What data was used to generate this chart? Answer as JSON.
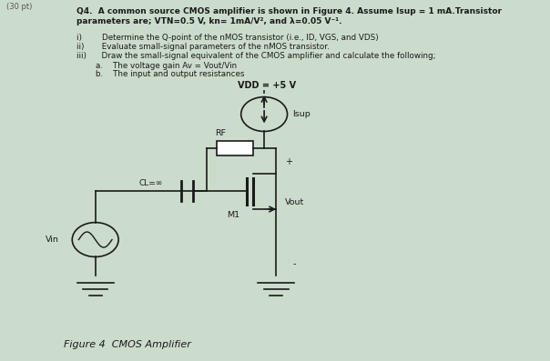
{
  "bg_color": "#ccdccc",
  "text_color": "#1a1a1a",
  "header1": "Q4.  A common source CMOS amplifier is shown in Figure 4. Assume Isup = 1 mA.Transistor",
  "header2": "parameters are; VTN=0.5 V, kn= 1mA/V², and λ=0.05 V⁻¹.",
  "item1": "i)        Determine the Q-point of the nMOS transistor (i.e., ID, VGS, and VDS)",
  "item2": "ii)       Evaluate small-signal parameters of the nMOS transistor.",
  "item3": "iii)      Draw the small-signal equivalent of the CMOS amplifier and calculate the following;",
  "item4": "a.    The voltage gain Av = Vout/Vin",
  "item5": "b.    The input and output resistances",
  "caption": "Figure 4  CMOS Amplifier",
  "vdd_label": "VDD = +5 V",
  "isup_label": "Isup",
  "rf_label": "RF",
  "cl_label": "CL=∞",
  "m1_label": "M1",
  "vout_label": "Vout",
  "vin_label": "Vin",
  "plus_label": "+",
  "minus_label": "-"
}
